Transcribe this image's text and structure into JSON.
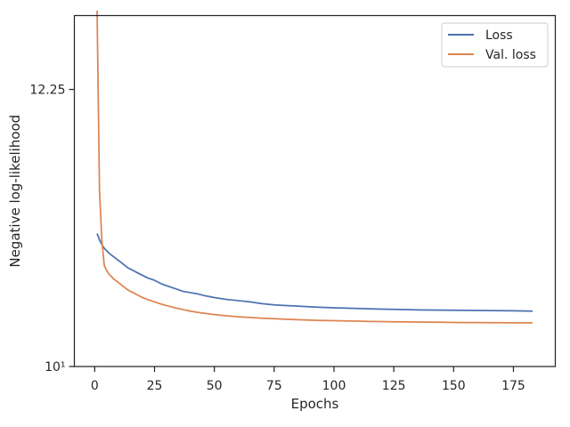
{
  "chart_data": {
    "type": "line",
    "title": "",
    "xlabel": "Epochs",
    "ylabel": "Negative log-likelihood",
    "xlim": [
      -8.5,
      192.5
    ],
    "ylim": [
      10.0,
      12.85
    ],
    "x_ticks": [
      0,
      25,
      50,
      75,
      100,
      125,
      150,
      175
    ],
    "x_tick_labels": [
      "0",
      "25",
      "50",
      "75",
      "100",
      "125",
      "150",
      "175"
    ],
    "y_ticks": [
      10.0,
      12.25
    ],
    "y_tick_labels": [
      "10¹",
      "12.25"
    ],
    "grid": false,
    "legend_position": "top-right",
    "series": [
      {
        "name": "Loss",
        "color": "#4c72b0",
        "x": [
          1,
          2,
          3,
          4,
          5,
          6,
          8,
          10,
          12,
          14,
          16,
          18,
          20,
          22,
          25,
          28,
          31,
          34,
          37,
          40,
          43,
          46,
          50,
          55,
          60,
          65,
          70,
          75,
          80,
          85,
          90,
          95,
          100,
          105,
          110,
          115,
          120,
          125,
          130,
          135,
          140,
          145,
          150,
          155,
          160,
          165,
          170,
          175,
          180,
          183
        ],
        "y": [
          11.08,
          11.03,
          10.99,
          10.96,
          10.94,
          10.92,
          10.89,
          10.86,
          10.83,
          10.8,
          10.78,
          10.76,
          10.74,
          10.72,
          10.7,
          10.67,
          10.65,
          10.63,
          10.61,
          10.6,
          10.59,
          10.575,
          10.56,
          10.545,
          10.535,
          10.525,
          10.51,
          10.5,
          10.495,
          10.49,
          10.485,
          10.48,
          10.477,
          10.474,
          10.471,
          10.469,
          10.466,
          10.464,
          10.462,
          10.46,
          10.459,
          10.458,
          10.457,
          10.456,
          10.455,
          10.454,
          10.453,
          10.452,
          10.451,
          10.45
        ]
      },
      {
        "name": "Val. loss",
        "color": "#dd8452",
        "x": [
          1,
          2,
          3,
          4,
          5,
          6,
          8,
          10,
          12,
          14,
          16,
          18,
          20,
          22,
          25,
          28,
          31,
          34,
          37,
          40,
          43,
          46,
          50,
          55,
          60,
          65,
          70,
          75,
          80,
          85,
          90,
          95,
          100,
          105,
          110,
          115,
          120,
          125,
          130,
          135,
          140,
          145,
          150,
          155,
          160,
          165,
          170,
          175,
          180,
          183
        ],
        "y": [
          12.89,
          11.43,
          11.02,
          10.82,
          10.78,
          10.75,
          10.71,
          10.68,
          10.65,
          10.62,
          10.6,
          10.58,
          10.56,
          10.545,
          10.525,
          10.505,
          10.49,
          10.475,
          10.462,
          10.45,
          10.44,
          10.432,
          10.422,
          10.412,
          10.404,
          10.398,
          10.392,
          10.388,
          10.384,
          10.38,
          10.377,
          10.374,
          10.372,
          10.37,
          10.368,
          10.366,
          10.365,
          10.363,
          10.362,
          10.361,
          10.36,
          10.359,
          10.358,
          10.357,
          10.357,
          10.356,
          10.356,
          10.355,
          10.355,
          10.355
        ]
      }
    ]
  }
}
